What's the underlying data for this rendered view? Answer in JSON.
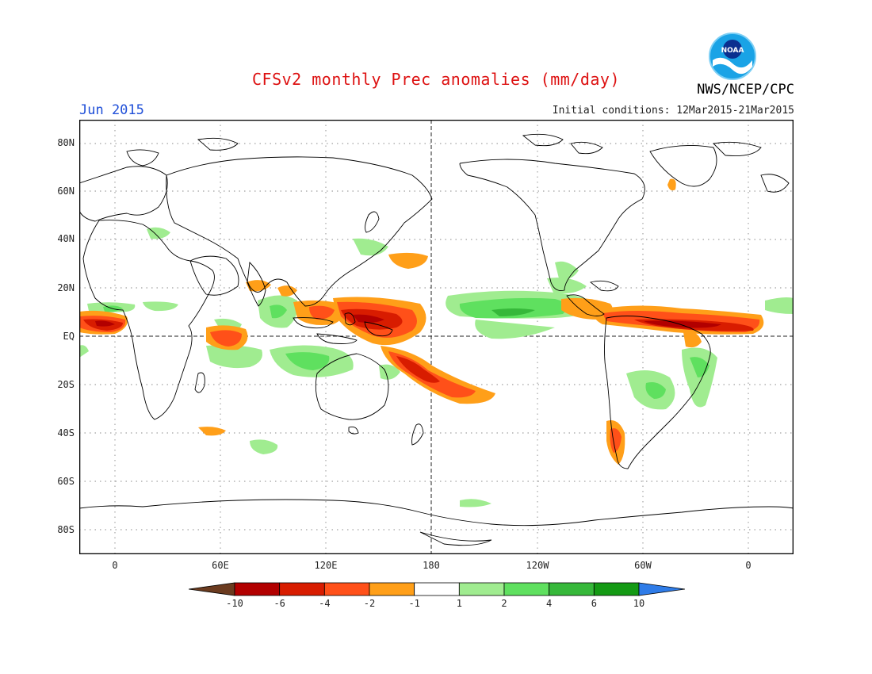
{
  "title": "CFSv2 monthly Prec anomalies (mm/day)",
  "month_label": "Jun 2015",
  "initial_conditions": "Initial conditions: 12Mar2015-21Mar2015",
  "organization": "NWS/NCEP/CPC",
  "logo_text": "NOAA",
  "lat_labels": [
    "80N",
    "60N",
    "40N",
    "20N",
    "EQ",
    "20S",
    "40S",
    "60S",
    "80S"
  ],
  "lon_labels": [
    "0",
    "60E",
    "120E",
    "180",
    "120W",
    "60W",
    "0"
  ],
  "colorbar": {
    "ticks": [
      "-10",
      "-6",
      "-4",
      "-2",
      "-1",
      "1",
      "2",
      "4",
      "6",
      "10"
    ],
    "colors": [
      "#6b3b1f",
      "#b20000",
      "#d81c00",
      "#ff5019",
      "#ff9f19",
      "#ffffff",
      "#a0ec90",
      "#5fe05f",
      "#36b83a",
      "#149a14",
      "#2f7ce8"
    ]
  }
}
